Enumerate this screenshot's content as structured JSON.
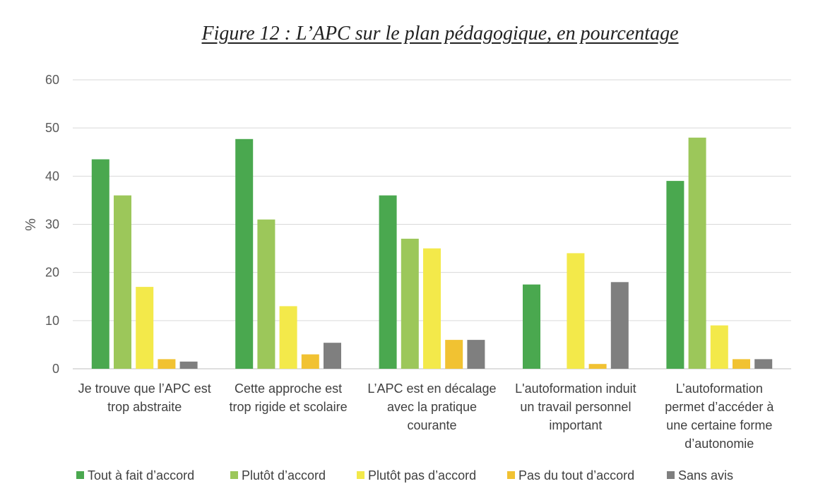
{
  "chart_data": {
    "type": "bar",
    "title": "Figure 12 : L’APC sur le plan pédagogique, en pourcentage",
    "xlabel": "",
    "ylabel": "%",
    "ylim": [
      0,
      60
    ],
    "yticks": [
      0,
      10,
      20,
      30,
      40,
      50,
      60
    ],
    "grid": true,
    "legend_position": "bottom",
    "categories": [
      [
        "Je trouve que l’APC est",
        "trop abstraite"
      ],
      [
        "Cette approche est",
        "trop rigide et scolaire"
      ],
      [
        "L’APC est en décalage",
        "avec la pratique",
        "courante"
      ],
      [
        "L'autoformation induit",
        "un travail personnel",
        "important"
      ],
      [
        "L’autoformation",
        "permet d’accéder à",
        "une certaine forme",
        "d’autonomie"
      ]
    ],
    "series": [
      {
        "name": "Tout à fait d’accord",
        "color": "#4aa84f",
        "values": [
          43.5,
          47.7,
          36,
          17.5,
          39
        ]
      },
      {
        "name": "Plutôt d’accord",
        "color": "#9cc75a",
        "values": [
          36,
          31,
          27,
          null,
          48
        ]
      },
      {
        "name": "Plutôt pas d’accord",
        "color": "#f3e94a",
        "values": [
          17,
          13,
          25,
          24,
          9
        ]
      },
      {
        "name": "Pas du tout d’accord",
        "color": "#f1c232",
        "values": [
          2,
          3,
          6,
          1,
          2
        ]
      },
      {
        "name": "Sans avis",
        "color": "#7f7f7f",
        "values": [
          1.5,
          5.4,
          6,
          18,
          2
        ]
      }
    ]
  }
}
